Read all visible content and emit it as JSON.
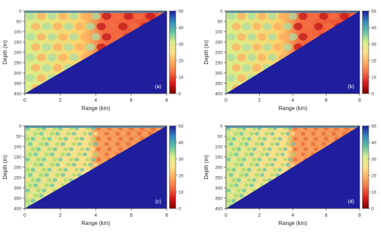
{
  "chart_data": [
    {
      "type": "heatmap",
      "panel_label": "(a)",
      "xlabel": "Range (km)",
      "ylabel": "Depth (m)",
      "xlim": [
        0,
        8
      ],
      "ylim": [
        400,
        0
      ],
      "x_ticks": [
        "0",
        "2",
        "4",
        "6",
        "8"
      ],
      "y_ticks": [
        "0",
        "50",
        "100",
        "150",
        "200",
        "250",
        "300",
        "350",
        "400"
      ],
      "colorbar": {
        "range": [
          0,
          50
        ],
        "ticks": [
          "50",
          "40",
          "30",
          "20",
          "10",
          "0"
        ]
      },
      "seabed_boundary": {
        "x": [
          0,
          8
        ],
        "depth": [
          400,
          0
        ]
      },
      "field_pattern": "coarse interference, strongest (red) beyond 4 km"
    },
    {
      "type": "heatmap",
      "panel_label": "(b)",
      "xlabel": "Range (km)",
      "ylabel": "Depth (m)",
      "xlim": [
        0,
        8
      ],
      "ylim": [
        400,
        0
      ],
      "x_ticks": [
        "0",
        "2",
        "4",
        "6",
        "8"
      ],
      "y_ticks": [
        "0",
        "50",
        "100",
        "150",
        "200",
        "250",
        "300",
        "350",
        "400"
      ],
      "colorbar": {
        "range": [
          0,
          50
        ],
        "ticks": [
          "50",
          "40",
          "30",
          "20",
          "10",
          "0"
        ]
      },
      "seabed_boundary": {
        "x": [
          0,
          8
        ],
        "depth": [
          400,
          0
        ]
      },
      "field_pattern": "coarse interference, strongest (red) beyond 4 km"
    },
    {
      "type": "heatmap",
      "panel_label": "(c)",
      "xlabel": "Range (km)",
      "ylabel": "Depth (m)",
      "xlim": [
        0,
        8
      ],
      "ylim": [
        400,
        0
      ],
      "x_ticks": [
        "0",
        "2",
        "4",
        "6",
        "8"
      ],
      "y_ticks": [
        "0",
        "50",
        "100",
        "150",
        "200",
        "250",
        "300",
        "350",
        "400"
      ],
      "colorbar": {
        "range": [
          0,
          50
        ],
        "ticks": [
          "50",
          "40",
          "30",
          "20",
          "10",
          "0"
        ]
      },
      "seabed_boundary": {
        "x": [
          0,
          8
        ],
        "depth": [
          400,
          0
        ]
      },
      "field_pattern": "fine interference, orange band beyond 4 km"
    },
    {
      "type": "heatmap",
      "panel_label": "(d)",
      "xlabel": "Range (km)",
      "ylabel": "Depth (m)",
      "xlim": [
        0,
        8
      ],
      "ylim": [
        400,
        0
      ],
      "x_ticks": [
        "0",
        "2",
        "4",
        "6",
        "8"
      ],
      "y_ticks": [
        "0",
        "50",
        "100",
        "150",
        "200",
        "250",
        "300",
        "350",
        "400"
      ],
      "colorbar": {
        "range": [
          0,
          50
        ],
        "ticks": [
          "50",
          "40",
          "30",
          "20",
          "10",
          "0"
        ]
      },
      "seabed_boundary": {
        "x": [
          0,
          8
        ],
        "depth": [
          400,
          0
        ]
      },
      "field_pattern": "fine interference, orange band beyond 4 km"
    }
  ],
  "colors": {
    "seabed": "#1f1f9e",
    "colormap": [
      "#7f0000",
      "#d7191c",
      "#f46d43",
      "#fdae61",
      "#fee08b",
      "#d9ef8b",
      "#66c2a5",
      "#3288bd",
      "#1f1f9e"
    ]
  }
}
